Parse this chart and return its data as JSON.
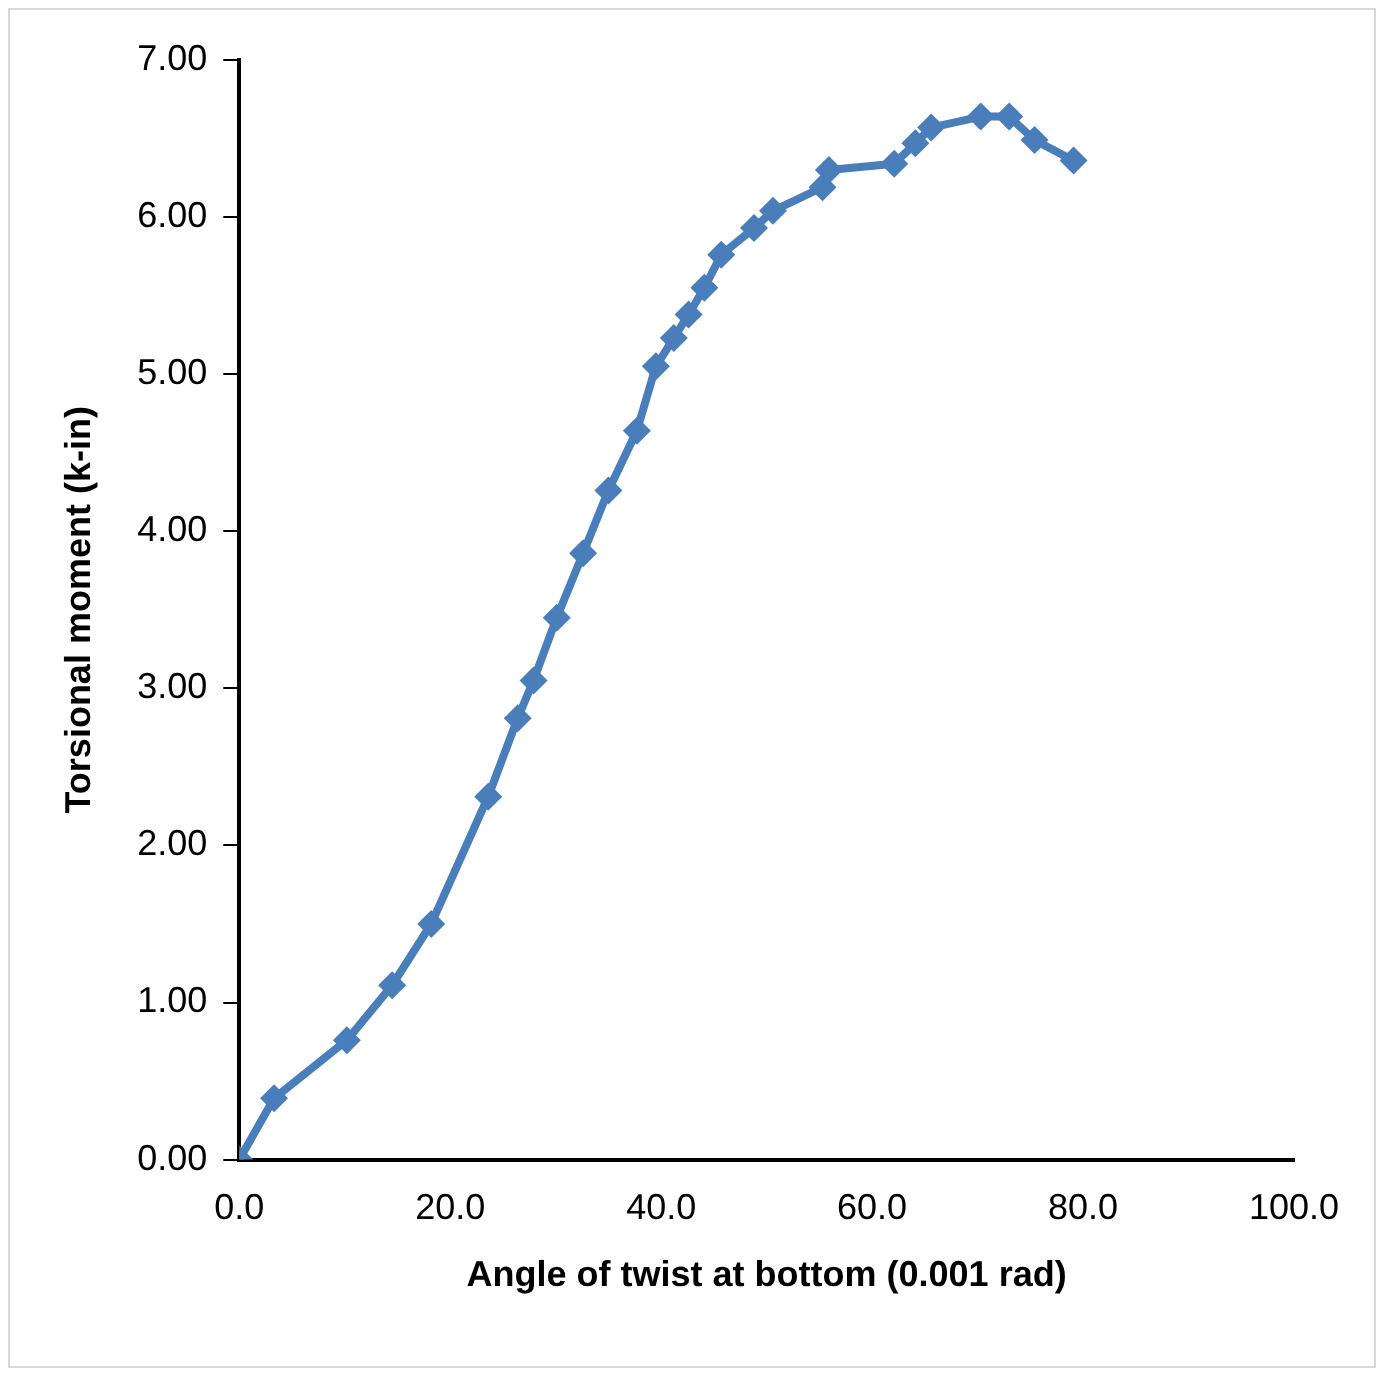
{
  "chart_data": {
    "type": "line",
    "xlabel": "Angle of twist at bottom (0.001 rad)",
    "ylabel": "Torsional moment (k-in)",
    "xlim": [
      0,
      100
    ],
    "xticks": [
      {
        "value": 0,
        "label": "0.0"
      },
      {
        "value": 20,
        "label": "20.0"
      },
      {
        "value": 40,
        "label": "40.0"
      },
      {
        "value": 60,
        "label": "60.0"
      },
      {
        "value": 80,
        "label": "80.0"
      },
      {
        "value": 100,
        "label": "100.0"
      }
    ],
    "ylim": [
      0,
      7
    ],
    "yticks": [
      {
        "value": 0,
        "label": "0.00"
      },
      {
        "value": 1,
        "label": "1.00"
      },
      {
        "value": 2,
        "label": "2.00"
      },
      {
        "value": 3,
        "label": "3.00"
      },
      {
        "value": 4,
        "label": "4.00"
      },
      {
        "value": 5,
        "label": "5.00"
      },
      {
        "value": 6,
        "label": "6.00"
      },
      {
        "value": 7,
        "label": "7.00"
      }
    ],
    "grid": false,
    "legend": false,
    "marker": "diamond",
    "line_style": "solid",
    "series": [
      {
        "color": "#4a7ebb",
        "x": [
          0,
          3.3,
          10.2,
          14.5,
          18.2,
          23.6,
          26.4,
          27.9,
          30.1,
          32.6,
          35.0,
          37.7,
          39.5,
          41.2,
          42.6,
          44.1,
          45.7,
          48.8,
          50.6,
          55.3,
          55.9,
          62.1,
          64.1,
          65.6,
          70.3,
          73.0,
          75.4,
          79.1
        ],
        "values": [
          0,
          0.39,
          0.76,
          1.11,
          1.5,
          2.31,
          2.81,
          3.05,
          3.45,
          3.86,
          4.26,
          4.64,
          5.05,
          5.23,
          5.38,
          5.55,
          5.76,
          5.93,
          6.04,
          6.19,
          6.3,
          6.34,
          6.47,
          6.57,
          6.64,
          6.64,
          6.49,
          6.36
        ]
      }
    ]
  }
}
